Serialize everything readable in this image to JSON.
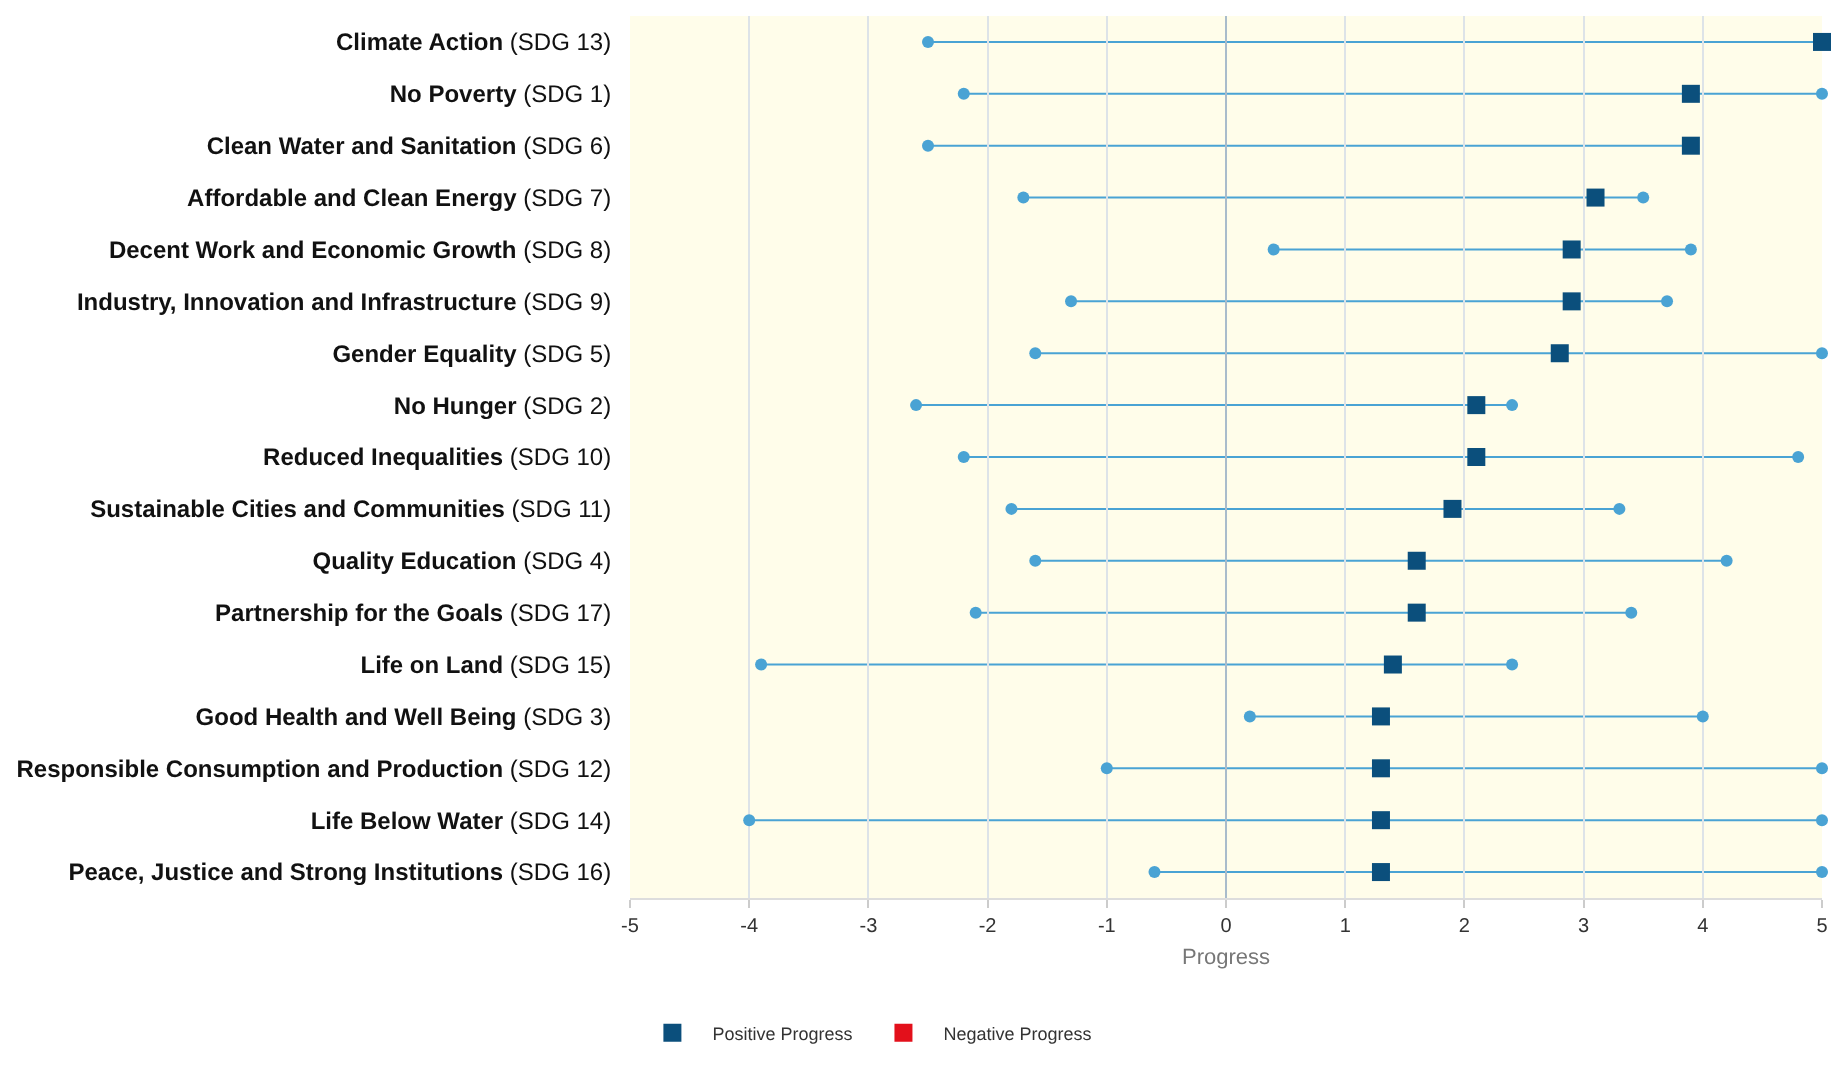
{
  "chart_data": {
    "type": "scatter",
    "orientation": "horizontal",
    "xlabel": "Progress",
    "categories": [
      "Climate Action (SDG 13)",
      "No Poverty (SDG 1)",
      "Clean Water and Sanitation (SDG 6)",
      "Affordable and Clean Energy (SDG 7)",
      "Decent Work and Economic Growth (SDG 8)",
      "Industry, Innovation and Infrastructure (SDG 9)",
      "Gender Equality (SDG 5)",
      "No Hunger (SDG 2)",
      "Reduced Inequalities (SDG 10)",
      "Sustainable Cities and Communities (SDG 11)",
      "Quality Education (SDG 4)",
      "Partnership for the Goals (SDG 17)",
      "Life on Land (SDG 15)",
      "Good Health and Well Being (SDG 3)",
      "Responsible Consumption and Production (SDG 12)",
      "Life Below Water (SDG 14)",
      "Peace, Justice and Strong Institutions (SDG 16)"
    ],
    "series": [
      {
        "color": "#4aa3d4",
        "marker": "circle",
        "values": [
          -2.5,
          -2.2,
          -2.5,
          -1.7,
          0.4,
          -1.3,
          -1.6,
          -2.6,
          -2.2,
          -1.8,
          -1.6,
          -2.1,
          -3.9,
          0.2,
          -1.0,
          -4.0,
          -0.6
        ]
      },
      {
        "color": "#4aa3d4",
        "marker": "circle",
        "values": [
          null,
          5,
          null,
          3.5,
          3.9,
          3.7,
          5,
          2.4,
          4.8,
          3.3,
          4.2,
          3.4,
          2.4,
          4.0,
          5,
          5,
          5
        ]
      },
      {
        "name": "Positive Progress",
        "color": "#0b4f7c",
        "marker": "square",
        "values": [
          5,
          3.9,
          3.9,
          3.1,
          2.9,
          2.9,
          2.8,
          2.1,
          2.1,
          1.9,
          1.6,
          1.6,
          1.4,
          1.3,
          1.3,
          1.3,
          1.3
        ]
      },
      {
        "name": "Negative Progress",
        "color": "#e3101b",
        "marker": "square",
        "values": [
          null,
          null,
          null,
          null,
          null,
          null,
          null,
          null,
          null,
          null,
          null,
          null,
          null,
          null,
          null,
          null,
          null
        ]
      }
    ],
    "xlim": [
      -5,
      5
    ],
    "xticks": [
      -5,
      -4,
      -3,
      -2,
      -1,
      0,
      1,
      2,
      3,
      4,
      5
    ],
    "grid": "x",
    "legend": "bottom"
  }
}
